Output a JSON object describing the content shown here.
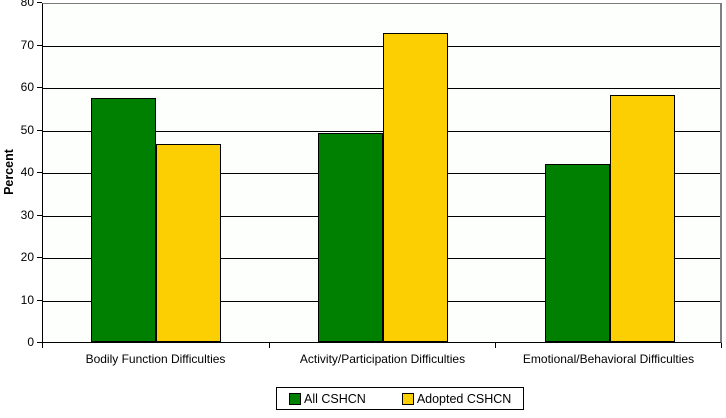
{
  "chart_data": {
    "type": "bar",
    "title": "",
    "xlabel": "",
    "ylabel": "Percent",
    "ylim": [
      0,
      80
    ],
    "ytick_step": 10,
    "grid": true,
    "legend_position": "bottom",
    "categories": [
      "Bodily Function Difficulties",
      "Activity/Participation Difficulties",
      "Emotional/Behavioral Difficulties"
    ],
    "series": [
      {
        "name": "All CSHCN",
        "color": "#008000",
        "values": [
          57.3,
          49.2,
          41.9
        ]
      },
      {
        "name": "Adopted CSHCN",
        "color": "#FCCF03",
        "values": [
          46.6,
          72.6,
          58.2
        ]
      }
    ],
    "colors": {
      "gridline": "#000000",
      "axis": "#000000",
      "bar_border": "#000000",
      "plot_frame": "#808080",
      "background": "#FFFFFF"
    }
  }
}
